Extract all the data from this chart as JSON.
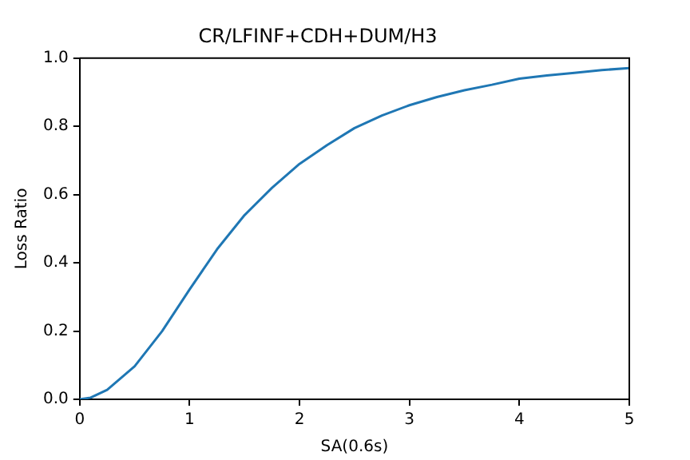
{
  "chart_data": {
    "type": "line",
    "title": "CR/LFINF+CDH+DUM/H3",
    "xlabel": "SA(0.6s)",
    "ylabel": "Loss Ratio",
    "x": [
      0,
      0.1,
      0.25,
      0.5,
      0.75,
      1,
      1.25,
      1.5,
      1.75,
      2,
      2.25,
      2.5,
      2.75,
      3,
      3.25,
      3.5,
      3.75,
      4,
      4.25,
      4.5,
      4.75,
      5
    ],
    "series": [
      {
        "color": "#1f77b4",
        "values": [
          0,
          0.005,
          0.028,
          0.097,
          0.2,
          0.322,
          0.44,
          0.54,
          0.62,
          0.69,
          0.745,
          0.795,
          0.832,
          0.862,
          0.886,
          0.906,
          0.922,
          0.94,
          0.949,
          0.957,
          0.965,
          0.971
        ]
      }
    ],
    "xlim": [
      0,
      5
    ],
    "xticks": [
      0,
      1,
      2,
      3,
      4,
      5
    ],
    "ylim": [
      0,
      1
    ],
    "yticks": [
      {
        "value": 0,
        "label": "0.0"
      },
      {
        "value": 0.2,
        "label": "0.2"
      },
      {
        "value": 0.4,
        "label": "0.4"
      },
      {
        "value": 0.6,
        "label": "0.6"
      },
      {
        "value": 0.8,
        "label": "0.8"
      },
      {
        "value": 1,
        "label": "1.0"
      }
    ],
    "grid": false,
    "legend": false,
    "marker": "none",
    "line_style": "solid"
  }
}
